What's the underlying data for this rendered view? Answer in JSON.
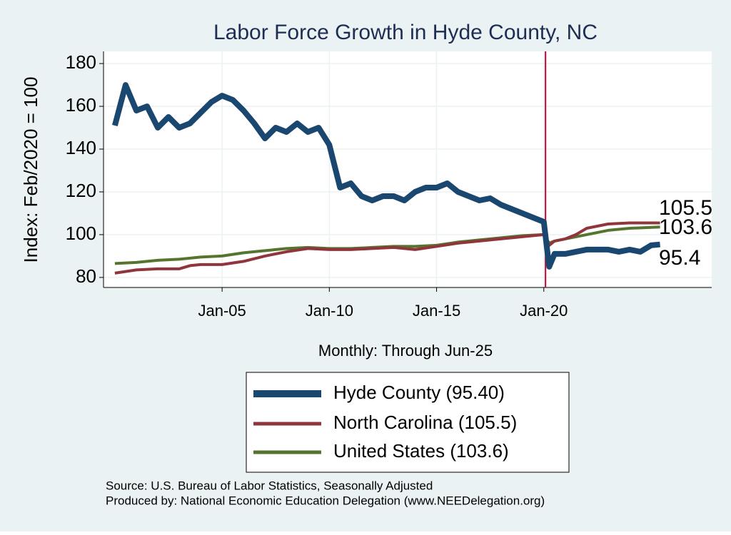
{
  "chart_data": {
    "type": "line",
    "title": "Labor Force Growth in Hyde  County, NC",
    "y_label": "Index: Feb/2020 = 100",
    "x_label": "Monthly: Through Jun-25",
    "xlim": [
      1999.47,
      2027.83
    ],
    "ylim": [
      75.3,
      185.7
    ],
    "xticks": [
      {
        "value": 2005,
        "label": "Jan-05"
      },
      {
        "value": 2010,
        "label": "Jan-10"
      },
      {
        "value": 2015,
        "label": "Jan-15"
      },
      {
        "value": 2020,
        "label": "Jan-20"
      }
    ],
    "yticks": [
      80,
      100,
      120,
      140,
      160,
      180
    ],
    "grid": true,
    "reference_x": 2020.08,
    "reference_color": "#c10534",
    "series": [
      {
        "name": "Hyde  County (95.40)",
        "color": "#1a476f",
        "x": [
          2000.0,
          2000.5,
          2001.0,
          2001.5,
          2002.0,
          2002.5,
          2003.0,
          2003.5,
          2004.0,
          2004.5,
          2005.0,
          2005.5,
          2006.0,
          2006.5,
          2007.0,
          2007.5,
          2008.0,
          2008.5,
          2009.0,
          2009.5,
          2010.0,
          2010.5,
          2011.0,
          2011.5,
          2012.0,
          2012.5,
          2013.0,
          2013.5,
          2014.0,
          2014.5,
          2015.0,
          2015.5,
          2016.0,
          2016.5,
          2017.0,
          2017.5,
          2018.0,
          2018.5,
          2019.0,
          2019.5,
          2020.0,
          2020.25,
          2020.5,
          2021.0,
          2021.5,
          2022.0,
          2022.5,
          2023.0,
          2023.5,
          2024.0,
          2024.5,
          2025.0,
          2025.42
        ],
        "values": [
          151,
          170,
          158,
          160,
          150,
          155,
          150,
          152,
          157,
          162,
          165,
          163,
          158,
          152,
          145,
          150,
          148,
          152,
          148,
          150,
          142,
          122,
          124,
          118,
          116,
          118,
          118,
          116,
          120,
          122,
          122,
          124,
          120,
          118,
          116,
          117,
          114,
          112,
          110,
          108,
          106,
          85,
          91,
          91,
          92,
          93,
          93,
          93,
          92,
          93,
          92,
          95,
          95.4
        ]
      },
      {
        "name": "North Carolina (105.5)",
        "color": "#90353b",
        "x": [
          2000,
          2001,
          2002,
          2003,
          2003.5,
          2004,
          2005,
          2006,
          2007,
          2008,
          2009,
          2010,
          2011,
          2012,
          2013,
          2014,
          2015,
          2016,
          2017,
          2018,
          2019,
          2020,
          2020.25,
          2020.5,
          2021,
          2021.5,
          2022,
          2022.5,
          2023,
          2024,
          2025.42
        ],
        "values": [
          82,
          83.5,
          84,
          84,
          85.5,
          86,
          86,
          87.5,
          90,
          92,
          93.5,
          93,
          93,
          93.5,
          94,
          93,
          94.5,
          96,
          97,
          98,
          99,
          100,
          95,
          97,
          98,
          100,
          103,
          104,
          105,
          105.5,
          105.5
        ]
      },
      {
        "name": "United States (103.6)",
        "color": "#55752f",
        "x": [
          2000,
          2001,
          2002,
          2003,
          2004,
          2005,
          2006,
          2007,
          2008,
          2009,
          2010,
          2011,
          2012,
          2013,
          2014,
          2015,
          2016,
          2017,
          2018,
          2019,
          2020,
          2020.25,
          2020.5,
          2021,
          2022,
          2023,
          2024,
          2025.42
        ],
        "values": [
          86.5,
          87,
          88,
          88.5,
          89.5,
          90,
          91.5,
          92.5,
          93.5,
          94,
          93.5,
          93.5,
          94,
          94.5,
          94.5,
          95,
          96.5,
          97.5,
          98.5,
          99.5,
          100,
          96,
          97,
          98,
          100,
          102,
          103,
          103.6
        ]
      }
    ],
    "end_labels": [
      "105.5",
      "103.6",
      "95.4"
    ],
    "source": "Source: U.S. Bureau of Labor Statistics, Seasonally Adjusted",
    "producer": "Produced by: National Economic Education Delegation (www.NEEDelegation.org)"
  }
}
